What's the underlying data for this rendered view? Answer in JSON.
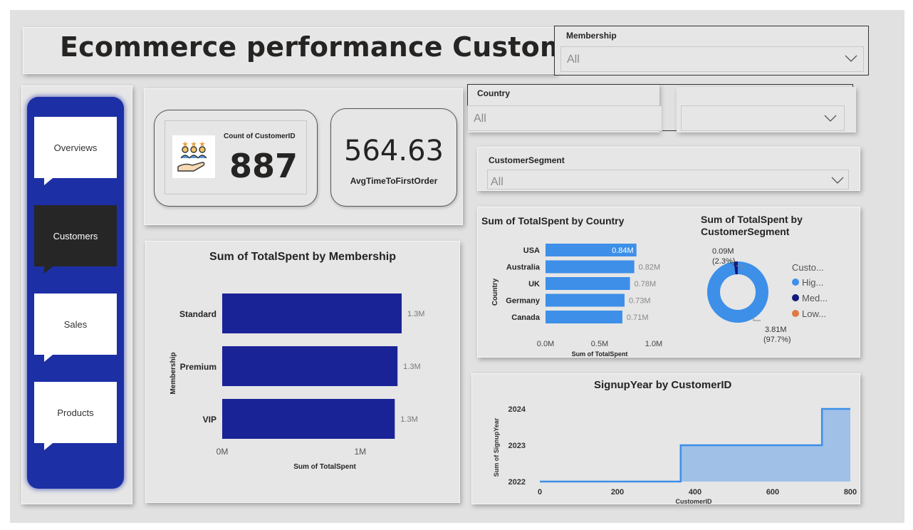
{
  "header": {
    "title": "Ecommerce performance Customers"
  },
  "slicers": {
    "membership": {
      "label": "Membership",
      "value": "All"
    },
    "country": {
      "label": "Country",
      "value": "All"
    },
    "segment": {
      "label": "CustomerSegment",
      "value": "All"
    }
  },
  "nav": {
    "items": [
      {
        "label": "Overviews",
        "active": false
      },
      {
        "label": "Customers",
        "active": true
      },
      {
        "label": "Sales",
        "active": false
      },
      {
        "label": "Products",
        "active": false
      }
    ]
  },
  "kpis": {
    "count": {
      "caption": "Count of CustomerID",
      "value": "887",
      "icon": "customer-hand-icon"
    },
    "avg": {
      "value": "564.63",
      "caption": "AvgTimeToFirstOrder"
    }
  },
  "colors": {
    "navy": "#1a2396",
    "blue": "#3d8fe8",
    "darkblue": "#141a7d",
    "orange": "#e07a45",
    "light_area": "#a0c0e8",
    "step_line": "#3d8fe8"
  },
  "chart_data": [
    {
      "id": "membership",
      "type": "bar",
      "title": "Sum of TotalSpent by Membership",
      "xlabel": "Sum of TotalSpent",
      "ylabel": "Membership",
      "categories": [
        "Standard",
        "Premium",
        "VIP"
      ],
      "values": [
        1300000,
        1270000,
        1250000
      ],
      "data_labels": [
        "1.3M",
        "1.3M",
        "1.3M"
      ],
      "ticks": [
        "0M",
        "1M"
      ],
      "xlim": [
        0,
        1300000
      ]
    },
    {
      "id": "country",
      "type": "bar",
      "title": "Sum of TotalSpent by Country",
      "xlabel": "Sum of TotalSpent",
      "ylabel": "Country",
      "categories": [
        "USA",
        "Australia",
        "UK",
        "Germany",
        "Canada"
      ],
      "values": [
        840000,
        820000,
        780000,
        730000,
        710000
      ],
      "data_labels": [
        "0.84M",
        "0.82M",
        "0.78M",
        "0.73M",
        "0.71M"
      ],
      "ticks": [
        "0.0M",
        "0.5M",
        "1.0M"
      ],
      "xlim": [
        0,
        1000000
      ]
    },
    {
      "id": "segment",
      "type": "pie",
      "title": "Sum of TotalSpent by CustomerSegment",
      "legend_title": "Custo...",
      "legend": [
        "Hig...",
        "Med...",
        "Low..."
      ],
      "values": [
        3.81,
        0.09,
        0.0
      ],
      "labels": [
        "3.81M",
        "0.09M",
        ""
      ],
      "percents": [
        "(97.7%)",
        "(2.3%)",
        ""
      ],
      "legend_position": "right"
    },
    {
      "id": "signup",
      "type": "area",
      "title": "SignupYear by CustomerID",
      "xlabel": "CustomerID",
      "ylabel": "Sum of SignupYear",
      "x": [
        0,
        363,
        363,
        727,
        727,
        800
      ],
      "y": [
        2022,
        2022,
        2023,
        2023,
        2024,
        2024
      ],
      "xticks": [
        "0",
        "200",
        "400",
        "600",
        "800"
      ],
      "yticks": [
        "2022",
        "2023",
        "2024"
      ],
      "xlim": [
        0,
        800
      ],
      "ylim": [
        2022,
        2024
      ]
    }
  ]
}
